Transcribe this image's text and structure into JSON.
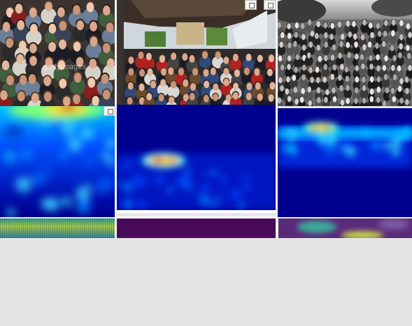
{
  "photos": {
    "watermark_text": "gettyimages"
  },
  "colors": {
    "density_low": "#00008f",
    "density_mid": "#00aaff",
    "density_high": "#ffff00",
    "density_peak": "#cc0000",
    "strip_purple": "#4a0a5a",
    "background": "#e4e4e4"
  },
  "icons": {
    "tile_control_a": "square-icon",
    "tile_control_b": "square-icon"
  }
}
